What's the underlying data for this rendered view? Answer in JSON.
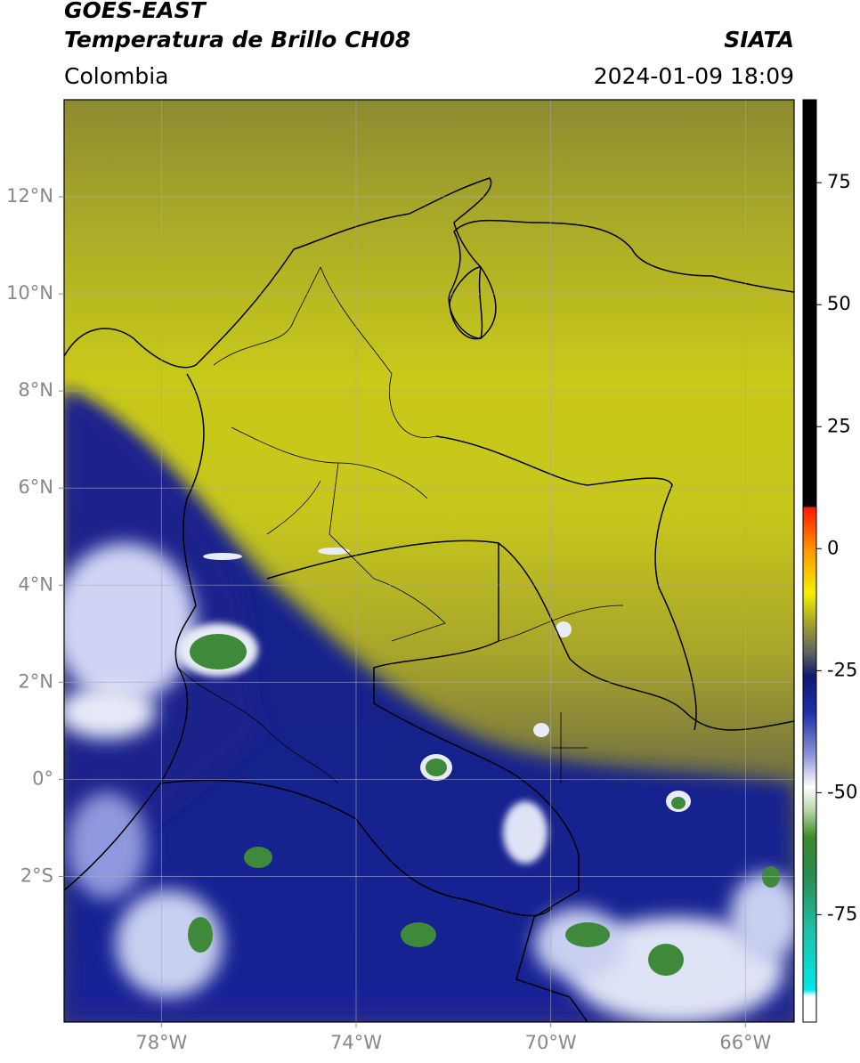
{
  "map": {
    "title": "GOES-EAST",
    "subtitle": "Temperatura de Brillo CH08",
    "source": "SIATA",
    "region": "Colombia",
    "datetime": "2024-01-09 18:09",
    "xlim": [
      -80,
      -65
    ],
    "ylim": [
      -5,
      14
    ],
    "xticks": [
      {
        "value": -78,
        "label": "78°W"
      },
      {
        "value": -74,
        "label": "74°W"
      },
      {
        "value": -70,
        "label": "70°W"
      },
      {
        "value": -66,
        "label": "66°W"
      }
    ],
    "yticks": [
      {
        "value": 12,
        "label": "12°N"
      },
      {
        "value": 10,
        "label": "10°N"
      },
      {
        "value": 8,
        "label": "8°N"
      },
      {
        "value": 6,
        "label": "6°N"
      },
      {
        "value": 4,
        "label": "4°N"
      },
      {
        "value": 2,
        "label": "2°N"
      },
      {
        "value": 0,
        "label": "0°"
      },
      {
        "value": -2,
        "label": "2°S"
      }
    ],
    "grid": true,
    "colorbar": {
      "lim": [
        -97,
        92
      ],
      "ticks": [
        75,
        50,
        25,
        0,
        -25,
        -50,
        -75
      ]
    }
  }
}
